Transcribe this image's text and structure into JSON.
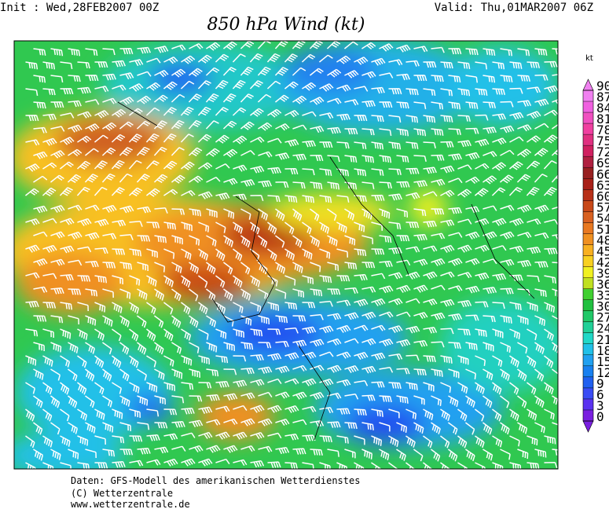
{
  "header": {
    "init": "Init : Wed,28FEB2007 00Z",
    "valid": "Valid: Thu,01MAR2007 06Z",
    "title": "850 hPa Wind (kt)"
  },
  "legend": {
    "unit": "kt",
    "ticks": [
      0,
      3,
      6,
      9,
      12,
      15,
      18,
      21,
      24,
      27,
      30,
      33,
      36,
      39,
      42,
      45,
      48,
      51,
      54,
      57,
      60,
      63,
      66,
      69,
      72,
      75,
      78,
      81,
      84,
      87,
      90
    ],
    "colors": [
      "#7a1fe0",
      "#5a32f0",
      "#3a4cf5",
      "#2060f0",
      "#1880f0",
      "#20a0f0",
      "#20c0e8",
      "#20d8c8",
      "#20d098",
      "#20c868",
      "#20c040",
      "#40d030",
      "#c0e020",
      "#f0f020",
      "#f8d020",
      "#f8b020",
      "#f09020",
      "#e87820",
      "#d86020",
      "#c84818",
      "#b83018",
      "#a82018",
      "#982020",
      "#b02040",
      "#d02060",
      "#e03080",
      "#f040a0",
      "#f050c0",
      "#f060e0",
      "#f080f0"
    ]
  },
  "footer": [
    "Daten: GFS-Modell des amerikanischen Wetterdienstes",
    "(C) Wetterzentrale",
    "www.wetterzentrale.de"
  ]
}
